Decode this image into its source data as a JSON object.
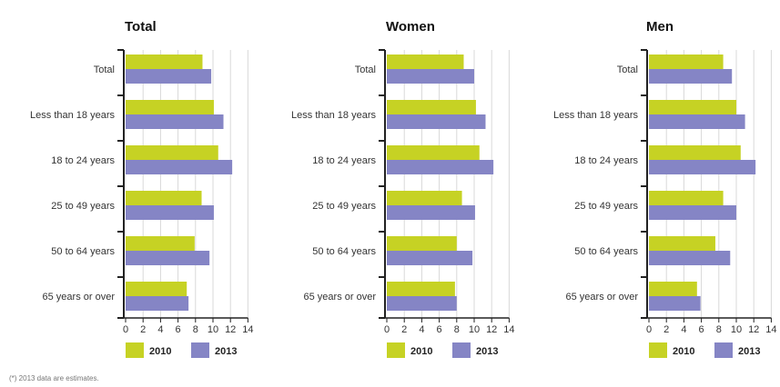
{
  "chart_data": [
    {
      "type": "bar",
      "orientation": "horizontal",
      "title": "Total",
      "categories": [
        "Total",
        "Less than 18 years",
        "18 to 24 years",
        "25 to 49 years",
        "50 to 64 years",
        "65 years or over"
      ],
      "series": [
        {
          "name": "2010",
          "values": [
            8.8,
            10.1,
            10.6,
            8.7,
            7.9,
            7.0
          ]
        },
        {
          "name": "2013",
          "values": [
            9.8,
            11.2,
            12.2,
            10.1,
            9.6,
            7.2
          ]
        }
      ],
      "xlim": [
        0,
        14
      ],
      "xticks": [
        "0",
        "2",
        "4",
        "6",
        "8",
        "10",
        "12",
        "14"
      ],
      "grid": true,
      "legend": "bottom"
    },
    {
      "type": "bar",
      "orientation": "horizontal",
      "title": "Women",
      "categories": [
        "Total",
        "Less than 18 years",
        "18 to 24 years",
        "25 to 49 years",
        "50 to 64 years",
        "65 years or over"
      ],
      "series": [
        {
          "name": "2010",
          "values": [
            8.8,
            10.2,
            10.6,
            8.6,
            8.0,
            7.8
          ]
        },
        {
          "name": "2013",
          "values": [
            10.0,
            11.3,
            12.2,
            10.1,
            9.8,
            8.0
          ]
        }
      ],
      "xlim": [
        0,
        14
      ],
      "xticks": [
        "0",
        "2",
        "4",
        "6",
        "8",
        "10",
        "12",
        "14"
      ],
      "grid": true,
      "legend": "bottom"
    },
    {
      "type": "bar",
      "orientation": "horizontal",
      "title": "Men",
      "categories": [
        "Total",
        "Less than 18 years",
        "18 to 24 years",
        "25 to 49 years",
        "50 to 64 years",
        "65 years or over"
      ],
      "series": [
        {
          "name": "2010",
          "values": [
            8.5,
            10.0,
            10.5,
            8.5,
            7.6,
            5.5
          ]
        },
        {
          "name": "2013",
          "values": [
            9.5,
            11.0,
            12.2,
            10.0,
            9.3,
            5.9
          ]
        }
      ],
      "xlim": [
        0,
        14
      ],
      "xticks": [
        "0",
        "2",
        "4",
        "6",
        "8",
        "10",
        "12",
        "14"
      ],
      "grid": true,
      "legend": "bottom"
    }
  ],
  "colors": {
    "2010": "#c6d224",
    "2013": "#8585c5",
    "grid": "#d9d9d9",
    "axis": "#222222"
  },
  "footnote": "(*) 2013 data are estimates."
}
